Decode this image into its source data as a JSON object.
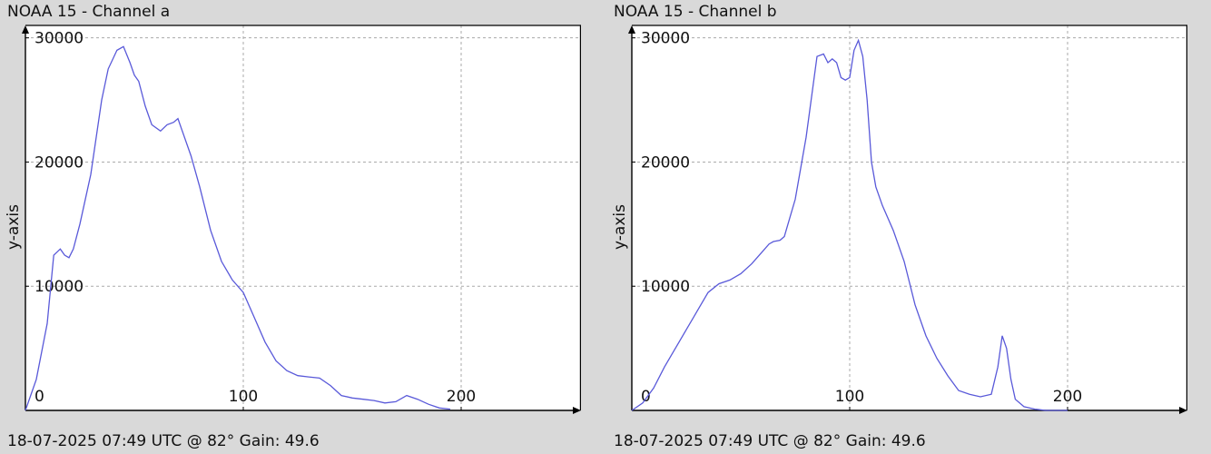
{
  "panels": [
    {
      "title": "NOAA 15 - Channel a",
      "footer": "18-07-2025 07:49 UTC @ 82° Gain: 49.6"
    },
    {
      "title": "NOAA 15 - Channel b",
      "footer": "18-07-2025 07:49 UTC @ 82° Gain: 49.6"
    }
  ],
  "chart_data": [
    {
      "type": "line",
      "title": "NOAA 15 - Channel a",
      "xlabel": "",
      "ylabel": "y-axis",
      "xlim": [
        0,
        255
      ],
      "ylim": [
        0,
        31000
      ],
      "xticks": [
        "0",
        "100",
        "200"
      ],
      "yticks": [
        "10000",
        "20000",
        "30000"
      ],
      "grid": true,
      "color": "#5959d9",
      "x": [
        0,
        5,
        10,
        13,
        16,
        18,
        20,
        22,
        25,
        30,
        35,
        38,
        42,
        45,
        48,
        50,
        52,
        55,
        58,
        62,
        65,
        68,
        70,
        72,
        76,
        80,
        85,
        90,
        95,
        100,
        105,
        110,
        115,
        120,
        125,
        130,
        135,
        140,
        145,
        150,
        155,
        160,
        165,
        170,
        175,
        180,
        185,
        190,
        195
      ],
      "y": [
        0,
        2500,
        7000,
        12500,
        13000,
        12500,
        12300,
        13000,
        15000,
        19000,
        25000,
        27500,
        29000,
        29300,
        28000,
        27000,
        26500,
        24500,
        23000,
        22500,
        23000,
        23200,
        23500,
        22500,
        20500,
        18000,
        14500,
        12000,
        10500,
        9500,
        7500,
        5500,
        4000,
        3200,
        2800,
        2700,
        2600,
        2000,
        1200,
        1000,
        900,
        800,
        600,
        700,
        1200,
        900,
        500,
        200,
        100
      ]
    },
    {
      "type": "line",
      "title": "NOAA 15 - Channel b",
      "xlabel": "",
      "ylabel": "y-axis",
      "xlim": [
        0,
        255
      ],
      "ylim": [
        0,
        31000
      ],
      "xticks": [
        "0",
        "100",
        "200"
      ],
      "yticks": [
        "10000",
        "20000",
        "30000"
      ],
      "grid": true,
      "color": "#5959d9",
      "x": [
        0,
        5,
        10,
        15,
        20,
        25,
        30,
        35,
        40,
        45,
        50,
        55,
        60,
        63,
        65,
        68,
        70,
        75,
        80,
        85,
        88,
        90,
        92,
        94,
        96,
        98,
        100,
        102,
        104,
        106,
        108,
        110,
        112,
        115,
        120,
        125,
        130,
        135,
        140,
        145,
        150,
        155,
        160,
        165,
        168,
        170,
        172,
        174,
        176,
        180,
        185,
        190,
        195,
        200
      ],
      "y": [
        0,
        600,
        1800,
        3500,
        5000,
        6500,
        8000,
        9500,
        10200,
        10500,
        11000,
        11800,
        12800,
        13400,
        13600,
        13700,
        14000,
        17000,
        22000,
        28500,
        28700,
        28000,
        28300,
        28000,
        26800,
        26600,
        26800,
        29000,
        29800,
        28500,
        25000,
        20000,
        18000,
        16500,
        14500,
        12000,
        8500,
        6000,
        4200,
        2800,
        1600,
        1300,
        1100,
        1300,
        3500,
        6000,
        5000,
        2500,
        900,
        300,
        100,
        0,
        0,
        0
      ]
    }
  ]
}
